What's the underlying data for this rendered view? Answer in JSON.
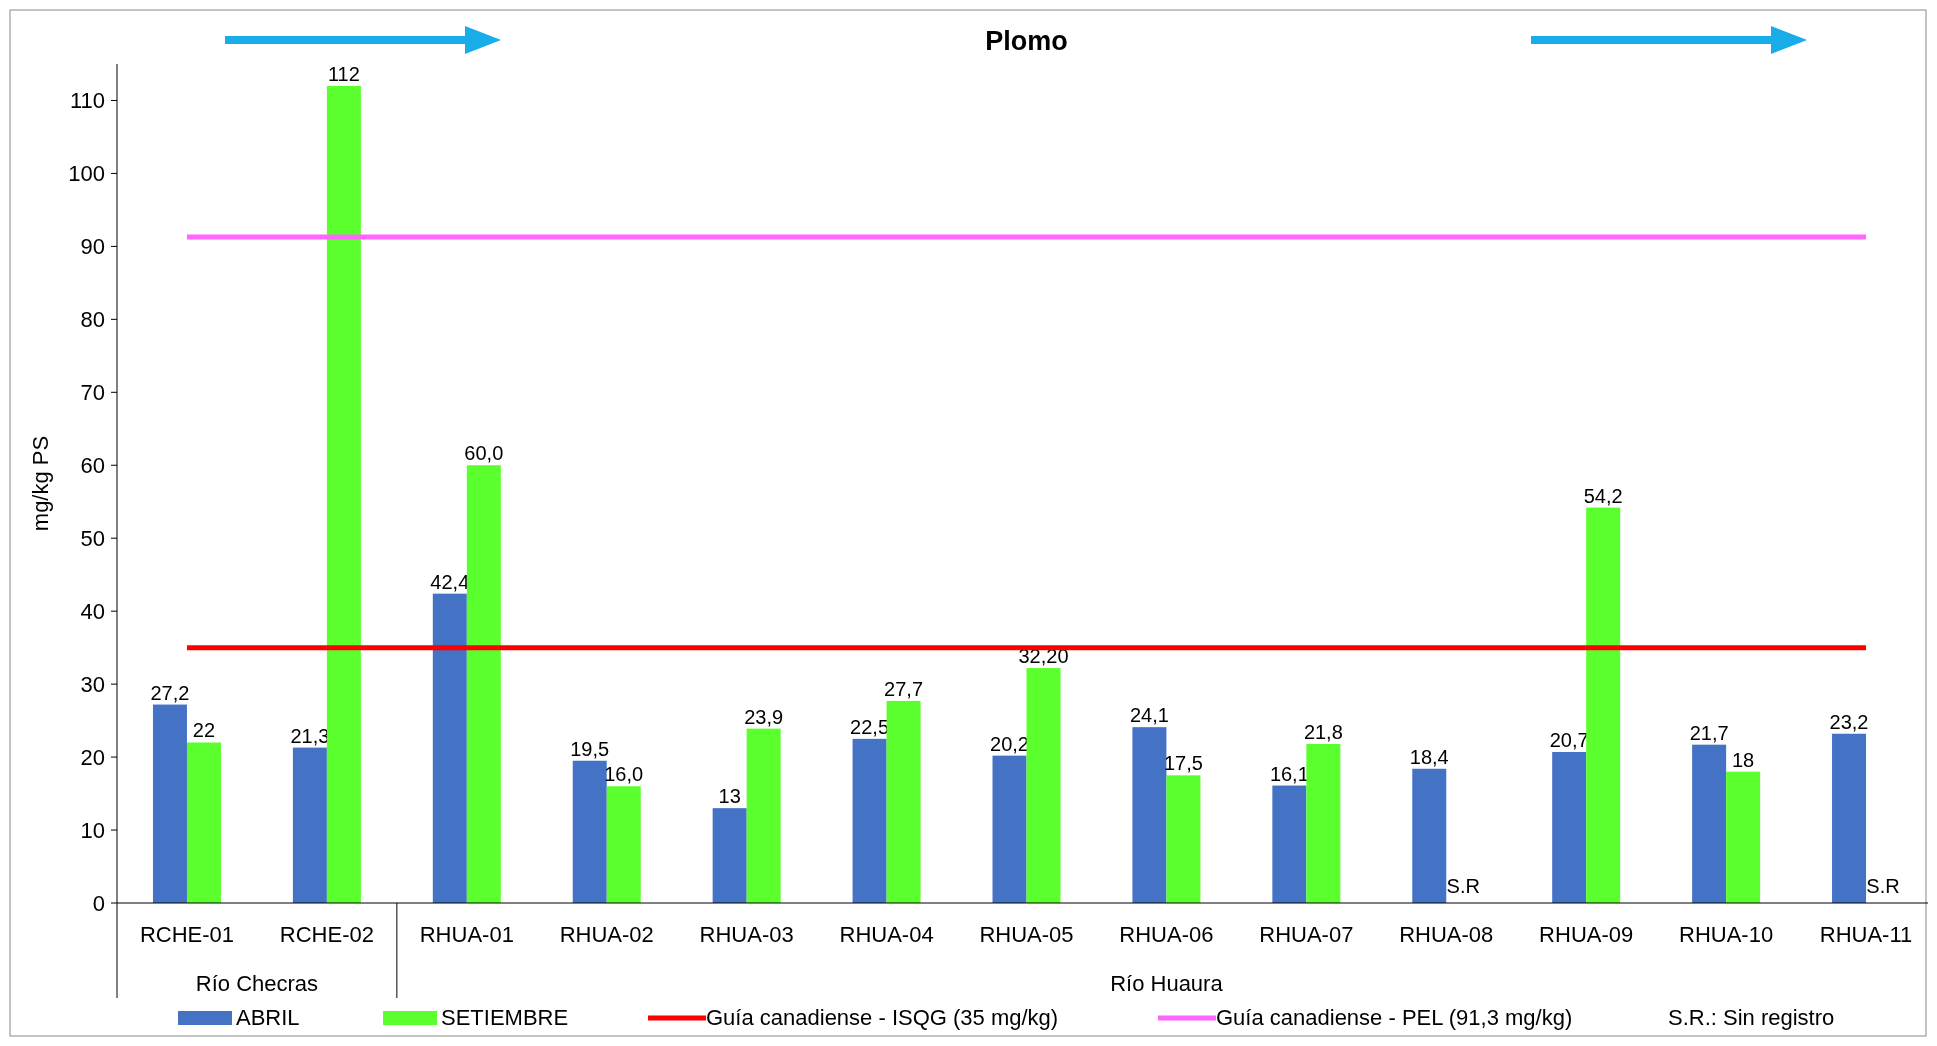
{
  "chart_data": {
    "type": "bar",
    "title": "Plomo",
    "ylabel": "mg/kg PS",
    "categories": [
      "RCHE-01",
      "RCHE-02",
      "RHUA-01",
      "RHUA-02",
      "RHUA-03",
      "RHUA-04",
      "RHUA-05",
      "RHUA-06",
      "RHUA-07",
      "RHUA-08",
      "RHUA-09",
      "RHUA-10",
      "RHUA-11"
    ],
    "series": [
      {
        "name": "ABRIL",
        "color": "#4472c4",
        "values": [
          27.2,
          21.3,
          42.4,
          19.5,
          13,
          22.5,
          20.2,
          24.1,
          16.1,
          18.4,
          20.7,
          21.7,
          23.2
        ],
        "value_labels": [
          "27,2",
          "21,3",
          "42,4",
          "19,5",
          "13",
          "22,5",
          "20,2",
          "24,1",
          "16,1",
          "18,4",
          "20,7",
          "21,7",
          "23,2"
        ]
      },
      {
        "name": "SETIEMBRE",
        "color": "#5cff2e",
        "values": [
          22,
          112,
          60.0,
          16.0,
          23.9,
          27.7,
          32.2,
          17.5,
          21.8,
          null,
          54.2,
          18,
          null
        ],
        "value_labels": [
          "22",
          "112",
          "60,0",
          "16,0",
          "23,9",
          "27,7",
          "32,20",
          "17,5",
          "21,8",
          "S.R",
          "54,2",
          "18",
          "S.R"
        ]
      }
    ],
    "ylim": [
      0,
      115
    ],
    "yticks": [
      0,
      10,
      20,
      30,
      40,
      50,
      60,
      70,
      80,
      90,
      100,
      110
    ],
    "ref_lines": [
      {
        "axis": "y",
        "value": 35,
        "label": "Guía canadiense - ISQG (35 mg/kg)",
        "color": "#ff0000"
      },
      {
        "axis": "y",
        "value": 91.3,
        "label": "Guía canadiense - PEL (91,3 mg/kg)",
        "color": "#ff66ff"
      }
    ],
    "annotations": [
      "Río Checras",
      "Río Huaura",
      "S.R.: Sin registro"
    ],
    "legend": "bottom",
    "grid": false
  }
}
